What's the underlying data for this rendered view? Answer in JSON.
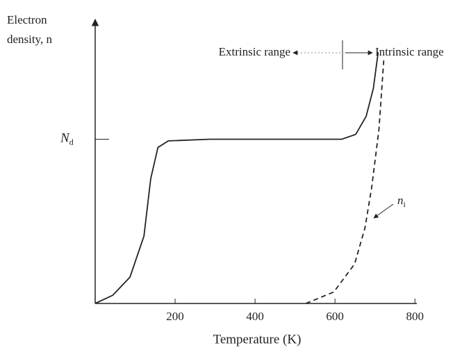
{
  "chart_data": {
    "type": "line",
    "y_label": [
      "Electron",
      "density, n"
    ],
    "x_label": "Temperature (K)",
    "xlim": [
      0,
      810
    ],
    "xticks": [
      200,
      400,
      600,
      800
    ],
    "ylim": [
      0,
      1.7
    ],
    "yticks": [
      {
        "value": 1,
        "label": "Nd"
      }
    ],
    "annotations": [
      "Extrinsic range",
      "Intrinsic range"
    ],
    "series": [
      {
        "color": "#222222",
        "dash": false,
        "x": [
          0,
          44,
          87,
          122,
          139,
          157,
          183,
          287,
          617,
          652,
          678,
          696,
          708
        ],
        "values": [
          0,
          0.05,
          0.16,
          0.41,
          0.76,
          0.95,
          0.99,
          1.0,
          1.0,
          1.03,
          1.14,
          1.31,
          1.53
        ]
      },
      {
        "name": "ni",
        "color": "#222222",
        "dash": true,
        "x": [
          527,
          597,
          649,
          675,
          692,
          710,
          722
        ],
        "values": [
          0,
          0.07,
          0.24,
          0.46,
          0.71,
          1.06,
          1.48
        ]
      }
    ]
  }
}
